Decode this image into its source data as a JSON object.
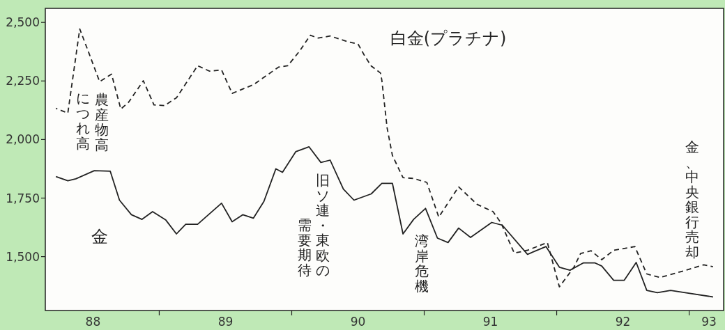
{
  "chart_data": {
    "type": "line",
    "xlim": [
      87.64,
      92.76
    ],
    "ylim": [
      1270,
      2560
    ],
    "xticks": [
      88,
      {
        "value": 88.5,
        "label": null
      },
      89,
      {
        "value": 89.5,
        "label": null
      },
      90,
      {
        "value": 90.5,
        "label": null
      },
      91,
      {
        "value": 91.5,
        "label": null
      },
      92,
      {
        "value": 92.5,
        "label": null
      },
      {
        "value": 92.65,
        "label": "93"
      }
    ],
    "yticks": [
      {
        "value": 1500,
        "label": "1,500"
      },
      {
        "value": 1750,
        "label": "1,750"
      },
      {
        "value": 2000,
        "label": "2,000"
      },
      {
        "value": 2250,
        "label": "2,250"
      },
      {
        "value": 2500,
        "label": "2,500"
      }
    ],
    "grid": false,
    "marker": "none",
    "series": [
      {
        "name": "白金(プラチナ)",
        "color": "#222222",
        "line_style": "dashed",
        "x": [
          87.72,
          87.81,
          87.9,
          87.97,
          88.05,
          88.14,
          88.21,
          88.27,
          88.38,
          88.46,
          88.54,
          88.63,
          88.79,
          88.88,
          88.97,
          89.05,
          89.21,
          89.4,
          89.47,
          89.56,
          89.64,
          89.7,
          89.79,
          89.92,
          90.0,
          90.05,
          90.1,
          90.17,
          90.18,
          90.22,
          90.26,
          90.34,
          90.42,
          90.52,
          90.61,
          90.76,
          90.9,
          91.02,
          91.08,
          91.18,
          91.28,
          91.43,
          91.52,
          91.63,
          91.68,
          91.76,
          91.84,
          91.93,
          92.09,
          92.18,
          92.28,
          92.47,
          92.61,
          92.68
        ],
        "values": [
          2133,
          2113,
          2472,
          2368,
          2247,
          2279,
          2130,
          2160,
          2251,
          2148,
          2145,
          2178,
          2315,
          2292,
          2297,
          2197,
          2234,
          2309,
          2315,
          2378,
          2445,
          2433,
          2442,
          2418,
          2408,
          2358,
          2314,
          2284,
          2254,
          2050,
          1932,
          1837,
          1834,
          1817,
          1669,
          1798,
          1723,
          1692,
          1644,
          1515,
          1527,
          1560,
          1371,
          1455,
          1513,
          1525,
          1487,
          1527,
          1543,
          1426,
          1411,
          1441,
          1465,
          1457
        ]
      },
      {
        "name": "金",
        "color": "#222222",
        "line_style": "solid",
        "x": [
          87.72,
          87.81,
          87.87,
          88.01,
          88.13,
          88.2,
          88.29,
          88.37,
          88.45,
          88.55,
          88.63,
          88.7,
          88.79,
          88.97,
          89.05,
          89.13,
          89.21,
          89.29,
          89.38,
          89.43,
          89.53,
          89.63,
          89.72,
          89.79,
          89.89,
          89.97,
          90.1,
          90.18,
          90.26,
          90.34,
          90.42,
          90.51,
          90.6,
          90.68,
          90.76,
          90.85,
          91.01,
          91.09,
          91.28,
          91.42,
          91.52,
          91.6,
          91.7,
          91.79,
          91.84,
          91.93,
          92.01,
          92.1,
          92.18,
          92.26,
          92.36,
          92.47,
          92.68
        ],
        "values": [
          1842,
          1824,
          1832,
          1867,
          1865,
          1741,
          1679,
          1659,
          1692,
          1656,
          1597,
          1638,
          1638,
          1728,
          1649,
          1679,
          1664,
          1736,
          1875,
          1860,
          1948,
          1969,
          1902,
          1912,
          1788,
          1741,
          1768,
          1813,
          1813,
          1597,
          1659,
          1706,
          1579,
          1560,
          1622,
          1582,
          1646,
          1634,
          1510,
          1543,
          1455,
          1442,
          1473,
          1473,
          1460,
          1399,
          1399,
          1475,
          1356,
          1346,
          1356,
          1346,
          1328
        ]
      }
    ],
    "annotations": [
      "農産物高",
      "につれ高",
      "旧ソ連・東欧の",
      "需要期待",
      "湾岸危機",
      "金、中央銀行売却"
    ]
  }
}
